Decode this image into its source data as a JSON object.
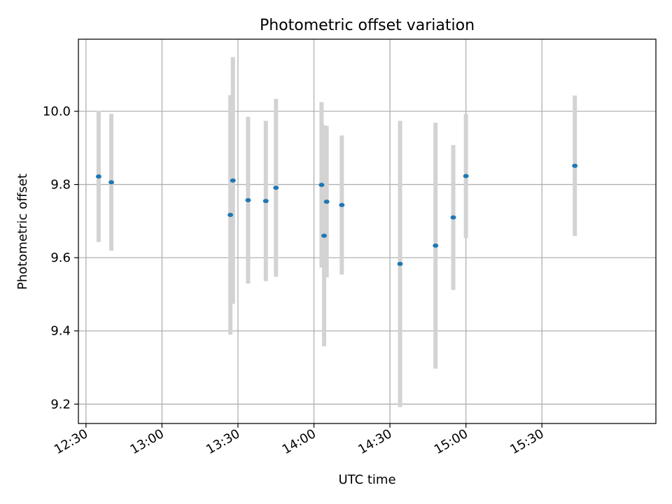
{
  "chart_data": {
    "type": "scatter",
    "title": "Photometric offset variation",
    "xlabel": "UTC time",
    "ylabel": "Photometric offset",
    "grid": true,
    "x_axis_kind": "time",
    "xlim": [
      "12:27",
      "16:15"
    ],
    "ylim": [
      9.147,
      10.197
    ],
    "x_ticks": [
      "12:30",
      "13:00",
      "13:30",
      "14:00",
      "14:30",
      "15:00",
      "15:30"
    ],
    "y_ticks": [
      9.2,
      9.4,
      9.6,
      9.8,
      10.0
    ],
    "y_tick_labels": [
      "9.2",
      "9.4",
      "9.6",
      "9.8",
      "10.0"
    ],
    "colors": {
      "marker": "#1f77b4",
      "errorbar": "#d3d3d3",
      "grid": "#b0b0b0",
      "axes": "#000000"
    },
    "points": [
      {
        "x": "12:35",
        "y": 9.822,
        "yerr": 0.179
      },
      {
        "x": "12:40",
        "y": 9.806,
        "yerr": 0.187
      },
      {
        "x": "13:27",
        "y": 9.717,
        "yerr": 0.327
      },
      {
        "x": "13:28",
        "y": 9.811,
        "yerr": 0.337
      },
      {
        "x": "13:34",
        "y": 9.757,
        "yerr": 0.228
      },
      {
        "x": "13:41",
        "y": 9.755,
        "yerr": 0.219
      },
      {
        "x": "13:45",
        "y": 9.791,
        "yerr": 0.243
      },
      {
        "x": "14:03",
        "y": 9.799,
        "yerr": 0.226
      },
      {
        "x": "14:04",
        "y": 9.66,
        "yerr": 0.302
      },
      {
        "x": "14:05",
        "y": 9.753,
        "yerr": 0.207
      },
      {
        "x": "14:11",
        "y": 9.744,
        "yerr": 0.19
      },
      {
        "x": "14:34",
        "y": 9.583,
        "yerr": 0.391
      },
      {
        "x": "14:48",
        "y": 9.633,
        "yerr": 0.336
      },
      {
        "x": "14:55",
        "y": 9.71,
        "yerr": 0.198
      },
      {
        "x": "15:00",
        "y": 9.823,
        "yerr": 0.17
      },
      {
        "x": "15:43",
        "y": 9.851,
        "yerr": 0.192
      }
    ]
  }
}
